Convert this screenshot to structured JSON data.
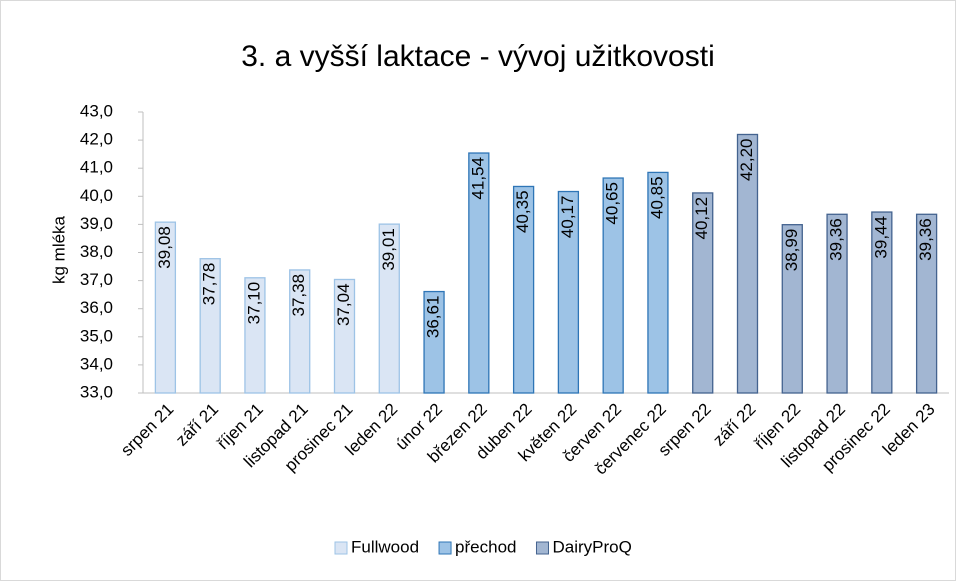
{
  "chart_data": {
    "type": "bar",
    "title": "3. a vyšší laktace - vývoj užitkovosti",
    "y_label": "kg mléka",
    "categories": [
      "srpen 21",
      "září 21",
      "říjen 21",
      "listopad 21",
      "prosinec 21",
      "leden 22",
      "únor 22",
      "březen 22",
      "duben 22",
      "květen 22",
      "červen 22",
      "červenec 22",
      "srpen 22",
      "září 22",
      "říjen 22",
      "listopad 22",
      "prosinec 22",
      "leden 23"
    ],
    "series": [
      {
        "name": "Fullwood",
        "color": "#dae5f4",
        "stroke": "#9dc3e6",
        "values": [
          39.08,
          37.78,
          37.1,
          37.38,
          37.04,
          39.01,
          null,
          null,
          null,
          null,
          null,
          null,
          null,
          null,
          null,
          null,
          null,
          null
        ],
        "value_labels": [
          "39,08",
          "37,78",
          "37,10",
          "37,38",
          "37,04",
          "39,01",
          null,
          null,
          null,
          null,
          null,
          null,
          null,
          null,
          null,
          null,
          null,
          null
        ]
      },
      {
        "name": "přechod",
        "color": "#9dc3e6",
        "stroke": "#2e75b6",
        "values": [
          null,
          null,
          null,
          null,
          null,
          null,
          36.61,
          41.54,
          40.35,
          40.17,
          40.65,
          40.85,
          null,
          null,
          null,
          null,
          null,
          null
        ],
        "value_labels": [
          null,
          null,
          null,
          null,
          null,
          null,
          "36,61",
          "41,54",
          "40,35",
          "40,17",
          "40,65",
          "40,85",
          null,
          null,
          null,
          null,
          null,
          null
        ]
      },
      {
        "name": "DairyProQ",
        "color": "#a2b6d2",
        "stroke": "#44638f",
        "values": [
          null,
          null,
          null,
          null,
          null,
          null,
          null,
          null,
          null,
          null,
          null,
          null,
          40.12,
          42.2,
          38.99,
          39.36,
          39.44,
          39.36
        ],
        "value_labels": [
          null,
          null,
          null,
          null,
          null,
          null,
          null,
          null,
          null,
          null,
          null,
          null,
          "40,12",
          "42,20",
          "38,99",
          "39,36",
          "39,44",
          "39,36"
        ]
      }
    ],
    "ylim": [
      33,
      43
    ],
    "yticks": [
      {
        "value": 33,
        "label": "33,0"
      },
      {
        "value": 34,
        "label": "34,0"
      },
      {
        "value": 35,
        "label": "35,0"
      },
      {
        "value": 36,
        "label": "36,0"
      },
      {
        "value": 37,
        "label": "37,0"
      },
      {
        "value": 38,
        "label": "38,0"
      },
      {
        "value": 39,
        "label": "39,0"
      },
      {
        "value": 40,
        "label": "40,0"
      },
      {
        "value": 41,
        "label": "41,0"
      },
      {
        "value": 42,
        "label": "42,0"
      },
      {
        "value": 43,
        "label": "43,0"
      }
    ],
    "legend": "bottom"
  }
}
